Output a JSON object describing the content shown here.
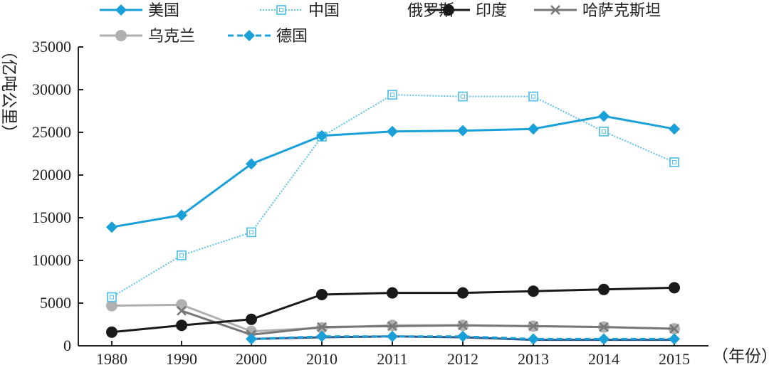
{
  "chart_data": {
    "type": "line",
    "title": "",
    "ylabel": "（亿吨公里）",
    "xlabel": "（年份）",
    "ylim": [
      0,
      35000
    ],
    "y_ticks": [
      0,
      5000,
      10000,
      15000,
      20000,
      25000,
      30000,
      35000
    ],
    "y_tick_labels": [
      "0",
      "5000",
      "10000",
      "15000",
      "20000",
      "25000",
      "30000",
      "35000"
    ],
    "categories": [
      "1980",
      "1990",
      "2000",
      "2010",
      "2011",
      "2012",
      "2013",
      "2014",
      "2015"
    ],
    "series": [
      {
        "name": "美国",
        "color": "#1aa0d8",
        "marker": "diamond",
        "dash": "solid",
        "values": [
          13900,
          15300,
          21300,
          24600,
          25100,
          25200,
          25400,
          26900,
          25400
        ]
      },
      {
        "name": "中国",
        "color": "#5cc3e8",
        "marker": "square-open",
        "dash": "dotted",
        "values": [
          5700,
          10600,
          13300,
          24500,
          29400,
          29200,
          29200,
          25100,
          21500
        ]
      },
      {
        "name": "俄罗斯",
        "color": "#2a5b8c",
        "marker": "none",
        "dash": "solid",
        "values": [
          null,
          null,
          800,
          1000,
          1100,
          1000,
          700,
          700,
          700
        ]
      },
      {
        "name": "印度",
        "color": "#1a1a1a",
        "marker": "circle",
        "dash": "solid",
        "values": [
          1600,
          2400,
          3100,
          6000,
          6200,
          6200,
          6400,
          6600,
          6800
        ]
      },
      {
        "name": "哈萨克斯坦",
        "color": "#777777",
        "marker": "x",
        "dash": "solid",
        "values": [
          null,
          4100,
          1300,
          2200,
          2300,
          2400,
          2300,
          2200,
          2000
        ]
      },
      {
        "name": "乌克兰",
        "color": "#b0b0b0",
        "marker": "circle",
        "dash": "solid",
        "values": [
          4700,
          4800,
          1700,
          2100,
          2400,
          2400,
          2300,
          2200,
          2000
        ]
      },
      {
        "name": "德国",
        "color": "#1aa0d8",
        "marker": "diamond",
        "dash": "dashed",
        "values": [
          null,
          null,
          800,
          1100,
          1100,
          1100,
          800,
          800,
          800
        ]
      }
    ]
  }
}
